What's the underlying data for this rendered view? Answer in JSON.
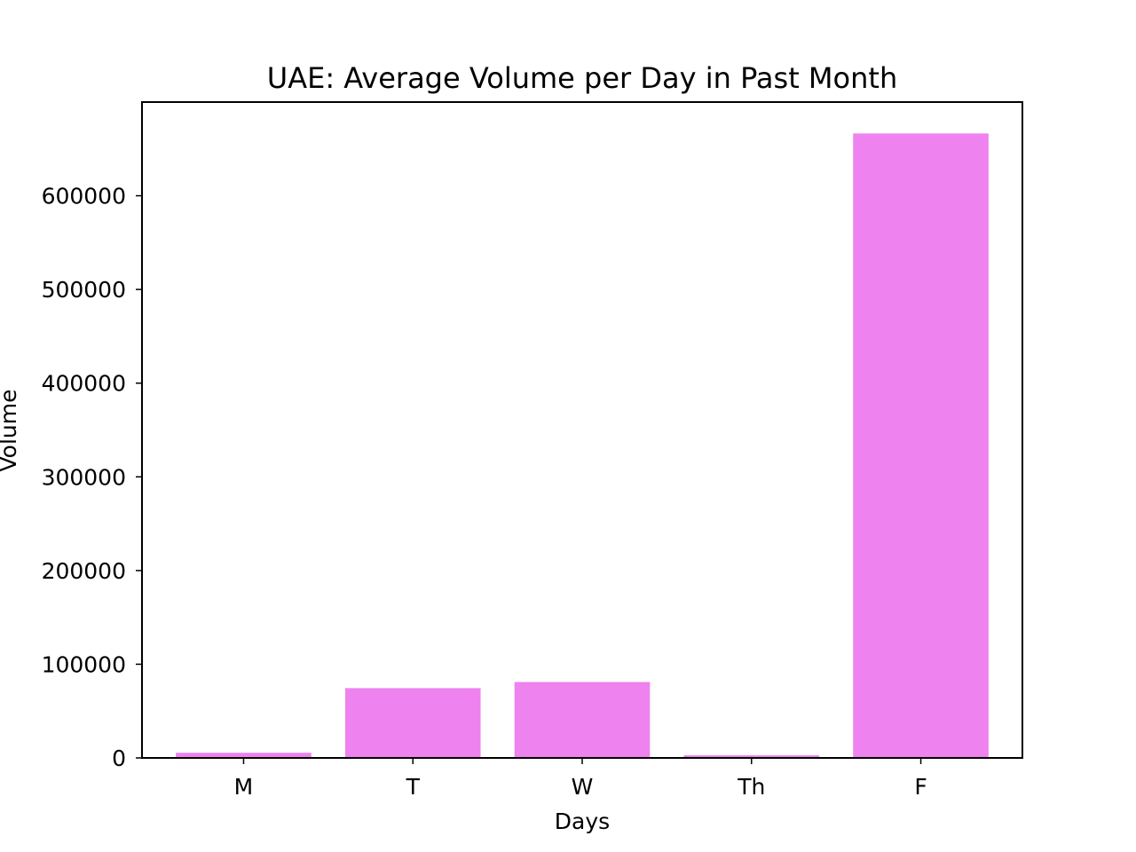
{
  "chart_data": {
    "type": "bar",
    "title": "UAE: Average Volume per Day in Past Month",
    "xlabel": "Days",
    "ylabel": "Volume",
    "categories": [
      "M",
      "T",
      "W",
      "Th",
      "F"
    ],
    "values": [
      5500,
      74500,
      81000,
      2800,
      666500
    ],
    "ylim": [
      0,
      700000
    ],
    "yticks": [
      0,
      100000,
      200000,
      300000,
      400000,
      500000,
      600000
    ],
    "ytick_labels": [
      "0",
      "100000",
      "200000",
      "300000",
      "400000",
      "500000",
      "600000"
    ],
    "bar_color": "#ee82ee",
    "grid": false,
    "legend": "none"
  }
}
